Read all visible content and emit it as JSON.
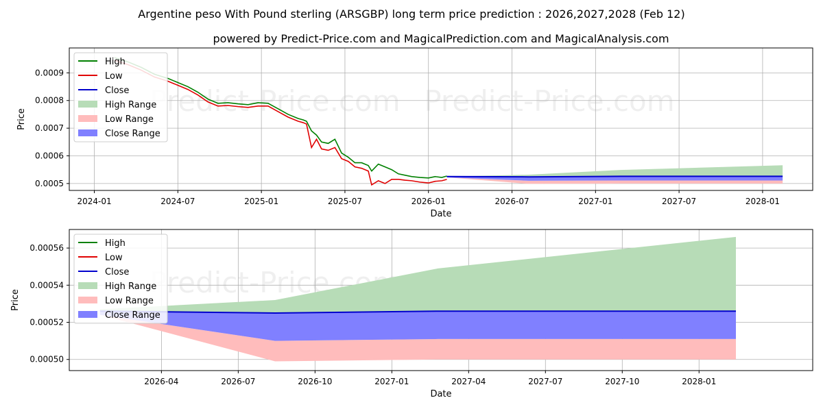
{
  "title_line1": "Argentine peso With Pound sterling (ARSGBP) long term price prediction : 2026,2027,2028 (Feb 12)",
  "title_line2": "powered by Predict-Price.com and MagicalPrediction.com and MagicalAnalysis.com",
  "watermark": "Predict-Price.com",
  "colors": {
    "high": "#008000",
    "low": "#e00000",
    "close": "#0000cc",
    "high_range": "#b7dcb7",
    "low_range": "#ffbcbc",
    "close_range": "#8080ff",
    "grid": "#b0b0b0"
  },
  "chart_data": [
    {
      "type": "line",
      "id": "top",
      "xlabel": "Date",
      "ylabel": "Price",
      "xlim": [
        2023.85,
        2028.3
      ],
      "ylim": [
        0.000475,
        0.00099
      ],
      "grid": true,
      "legend_position": "top-left",
      "legend": [
        "High",
        "Low",
        "Close",
        "High Range",
        "Low Range",
        "Close Range"
      ],
      "x_ticks": [
        {
          "v": 2024.0,
          "label": "2024-01"
        },
        {
          "v": 2024.5,
          "label": "2024-07"
        },
        {
          "v": 2025.0,
          "label": "2025-01"
        },
        {
          "v": 2025.5,
          "label": "2025-07"
        },
        {
          "v": 2026.0,
          "label": "2026-01"
        },
        {
          "v": 2026.5,
          "label": "2026-07"
        },
        {
          "v": 2027.0,
          "label": "2027-01"
        },
        {
          "v": 2027.5,
          "label": "2027-07"
        },
        {
          "v": 2028.0,
          "label": "2028-01"
        }
      ],
      "y_ticks": [
        {
          "v": 0.0005,
          "label": "0.0005"
        },
        {
          "v": 0.0006,
          "label": "0.0006"
        },
        {
          "v": 0.0007,
          "label": "0.0007"
        },
        {
          "v": 0.0008,
          "label": "0.0008"
        },
        {
          "v": 0.0009,
          "label": "0.0009"
        }
      ],
      "history": {
        "x": [
          2024.12,
          2024.2,
          2024.28,
          2024.36,
          2024.44,
          2024.5,
          2024.56,
          2024.62,
          2024.68,
          2024.74,
          2024.8,
          2024.86,
          2024.92,
          2024.98,
          2025.04,
          2025.1,
          2025.16,
          2025.22,
          2025.25,
          2025.27,
          2025.3,
          2025.33,
          2025.36,
          2025.4,
          2025.44,
          2025.48,
          2025.52,
          2025.56,
          2025.6,
          2025.64,
          2025.66,
          2025.7,
          2025.74,
          2025.78,
          2025.82,
          2025.86,
          2025.9,
          2025.95,
          2026.0,
          2026.04,
          2026.08,
          2026.11
        ],
        "high": [
          0.000955,
          0.00094,
          0.00092,
          0.000895,
          0.00088,
          0.000865,
          0.00085,
          0.00083,
          0.000805,
          0.00079,
          0.000792,
          0.000788,
          0.000785,
          0.000792,
          0.00079,
          0.00077,
          0.00075,
          0.000735,
          0.00073,
          0.000725,
          0.00069,
          0.000675,
          0.00065,
          0.000645,
          0.00066,
          0.00061,
          0.000595,
          0.000575,
          0.000575,
          0.000565,
          0.000545,
          0.00057,
          0.00056,
          0.00055,
          0.000535,
          0.00053,
          0.000525,
          0.000522,
          0.00052,
          0.000525,
          0.000522,
          0.000527
        ],
        "low": [
          0.000945,
          0.00093,
          0.00091,
          0.000885,
          0.00087,
          0.000855,
          0.00084,
          0.00082,
          0.000795,
          0.00078,
          0.000782,
          0.000778,
          0.000775,
          0.00078,
          0.00078,
          0.00076,
          0.00074,
          0.000725,
          0.00072,
          0.000715,
          0.00063,
          0.00066,
          0.000625,
          0.00062,
          0.00063,
          0.00059,
          0.00058,
          0.00056,
          0.000555,
          0.000545,
          0.000495,
          0.00051,
          0.0005,
          0.000515,
          0.000515,
          0.000512,
          0.00051,
          0.000505,
          0.000502,
          0.000508,
          0.00051,
          0.000515
        ]
      },
      "forecast": {
        "x": [
          2026.11,
          2026.6,
          2027.15,
          2028.12
        ],
        "close": [
          0.000525,
          0.000524,
          0.000526,
          0.000526
        ],
        "high_upper": [
          0.000525,
          0.000532,
          0.000549,
          0.000566
        ],
        "low_lower": [
          0.000522,
          0.000499,
          0.0005,
          0.0005
        ],
        "close_lower": [
          0.000522,
          0.00051,
          0.000511,
          0.000511
        ]
      }
    },
    {
      "type": "line",
      "id": "bottom",
      "xlabel": "Date",
      "ylabel": "Price",
      "xlim": [
        2025.95,
        2028.37
      ],
      "ylim": [
        0.000494,
        0.00057
      ],
      "grid": true,
      "legend_position": "top-left",
      "legend": [
        "High",
        "Low",
        "Close",
        "High Range",
        "Low Range",
        "Close Range"
      ],
      "x_ticks": [
        {
          "v": 2026.25,
          "label": "2026-04"
        },
        {
          "v": 2026.5,
          "label": "2026-07"
        },
        {
          "v": 2026.75,
          "label": "2026-10"
        },
        {
          "v": 2027.0,
          "label": "2027-01"
        },
        {
          "v": 2027.25,
          "label": "2027-04"
        },
        {
          "v": 2027.5,
          "label": "2027-07"
        },
        {
          "v": 2027.75,
          "label": "2027-10"
        },
        {
          "v": 2028.0,
          "label": "2028-01"
        }
      ],
      "y_ticks": [
        {
          "v": 0.0005,
          "label": "0.00050"
        },
        {
          "v": 0.00052,
          "label": "0.00052"
        },
        {
          "v": 0.00054,
          "label": "0.00054"
        },
        {
          "v": 0.00056,
          "label": "0.00056"
        }
      ],
      "forecast": {
        "x": [
          2026.05,
          2026.62,
          2027.15,
          2028.12
        ],
        "close": [
          0.000526,
          0.000525,
          0.000526,
          0.000526
        ],
        "high_upper": [
          0.000527,
          0.000532,
          0.000549,
          0.000566
        ],
        "low_lower": [
          0.000524,
          0.000499,
          0.0005,
          0.0005
        ],
        "close_lower": [
          0.000524,
          0.00051,
          0.000511,
          0.000511
        ],
        "low_upper": [
          0.000524,
          0.00051,
          0.000511,
          0.000511
        ]
      }
    }
  ]
}
